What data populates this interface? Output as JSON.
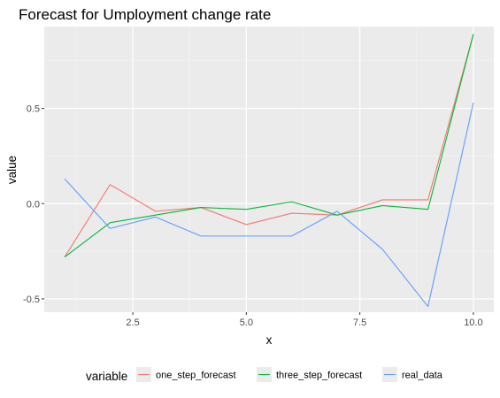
{
  "chart_data": {
    "type": "line",
    "title": "Forecast for Umployment change rate",
    "xlabel": "x",
    "ylabel": "value",
    "x": [
      1,
      2,
      3,
      4,
      5,
      6,
      7,
      8,
      9,
      10
    ],
    "xlim": [
      0.55,
      10.45
    ],
    "ylim": [
      -0.57,
      0.93
    ],
    "x_ticks": [
      2.5,
      5.0,
      7.5,
      10.0
    ],
    "x_tick_labels": [
      "2.5",
      "5.0",
      "7.5",
      "10.0"
    ],
    "y_ticks": [
      -0.5,
      0.0,
      0.5
    ],
    "y_tick_labels": [
      "-0.5",
      "0.0",
      "0.5"
    ],
    "grid": true,
    "legend": {
      "title": "variable",
      "position": "bottom"
    },
    "series": [
      {
        "name": "one_step_forecast",
        "color": "#F8766D",
        "values": [
          -0.28,
          0.1,
          -0.04,
          -0.02,
          -0.11,
          -0.05,
          -0.06,
          0.02,
          0.02,
          0.89
        ]
      },
      {
        "name": "three_step_forecast",
        "color": "#00BA38",
        "values": [
          -0.28,
          -0.1,
          -0.06,
          -0.02,
          -0.03,
          0.01,
          -0.06,
          -0.01,
          -0.03,
          0.89
        ]
      },
      {
        "name": "real_data",
        "color": "#619CFF",
        "values": [
          0.13,
          -0.13,
          -0.07,
          -0.17,
          -0.17,
          -0.17,
          -0.04,
          -0.24,
          -0.54,
          0.53
        ]
      }
    ]
  },
  "colors": {
    "panel_background": "#EBEBEB",
    "major_grid": "#FFFFFF",
    "minor_grid": "#F5F5F5"
  }
}
